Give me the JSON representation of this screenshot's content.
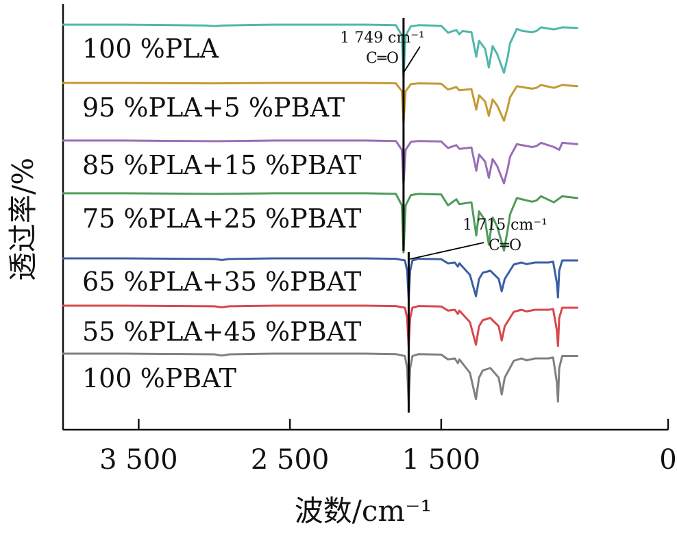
{
  "chart_data": {
    "type": "line",
    "xlabel": "波数/cm⁻¹",
    "ylabel": "透过率/%",
    "xlim": [
      4000,
      0
    ],
    "x_ticks": [
      3500,
      2500,
      1500,
      0
    ],
    "x_tick_labels": [
      "3 500",
      "2 500",
      "1 500",
      "0"
    ],
    "grid": false,
    "y_scale": "stacked/offset, no numeric tick labels",
    "series": [
      {
        "label": "100 %PLA",
        "color": "#4fb8aa",
        "points": [
          [
            4000,
            100
          ],
          [
            3600,
            100
          ],
          [
            3050,
            98.5
          ],
          [
            3000,
            97.5
          ],
          [
            2950,
            98.5
          ],
          [
            2600,
            100
          ],
          [
            2000,
            100
          ],
          [
            1800,
            99
          ],
          [
            1760,
            80
          ],
          [
            1749,
            2
          ],
          [
            1735,
            80
          ],
          [
            1700,
            97
          ],
          [
            1650,
            99
          ],
          [
            1500,
            98
          ],
          [
            1455,
            85
          ],
          [
            1400,
            90
          ],
          [
            1380,
            82
          ],
          [
            1360,
            88
          ],
          [
            1300,
            86
          ],
          [
            1268,
            40
          ],
          [
            1250,
            70
          ],
          [
            1210,
            55
          ],
          [
            1185,
            20
          ],
          [
            1160,
            60
          ],
          [
            1130,
            45
          ],
          [
            1085,
            10
          ],
          [
            1060,
            40
          ],
          [
            1045,
            65
          ],
          [
            1000,
            92
          ],
          [
            960,
            88
          ],
          [
            900,
            86
          ],
          [
            870,
            88
          ],
          [
            840,
            95
          ],
          [
            755,
            91
          ],
          [
            700,
            95
          ],
          [
            600,
            94
          ]
        ]
      },
      {
        "label": "95 %PLA+5 %PBAT",
        "color": "#c49a34",
        "points": [
          [
            4000,
            100
          ],
          [
            3600,
            100
          ],
          [
            3000,
            99
          ],
          [
            2600,
            100
          ],
          [
            2000,
            100
          ],
          [
            1800,
            99
          ],
          [
            1760,
            80
          ],
          [
            1749,
            2
          ],
          [
            1735,
            80
          ],
          [
            1700,
            97
          ],
          [
            1650,
            99
          ],
          [
            1500,
            98
          ],
          [
            1455,
            84
          ],
          [
            1400,
            90
          ],
          [
            1380,
            82
          ],
          [
            1300,
            85
          ],
          [
            1268,
            35
          ],
          [
            1250,
            70
          ],
          [
            1210,
            55
          ],
          [
            1185,
            20
          ],
          [
            1160,
            60
          ],
          [
            1130,
            45
          ],
          [
            1085,
            8
          ],
          [
            1060,
            40
          ],
          [
            1045,
            65
          ],
          [
            1000,
            92
          ],
          [
            900,
            86
          ],
          [
            870,
            88
          ],
          [
            840,
            95
          ],
          [
            755,
            88
          ],
          [
            700,
            95
          ],
          [
            600,
            92
          ]
        ]
      },
      {
        "label": "85 %PLA+15 %PBAT",
        "color": "#9a6db5",
        "points": [
          [
            4000,
            100
          ],
          [
            3600,
            100
          ],
          [
            3000,
            98.5
          ],
          [
            2600,
            100
          ],
          [
            2000,
            100
          ],
          [
            1800,
            99
          ],
          [
            1760,
            80
          ],
          [
            1749,
            5
          ],
          [
            1735,
            80
          ],
          [
            1700,
            97
          ],
          [
            1650,
            99
          ],
          [
            1500,
            98
          ],
          [
            1455,
            84
          ],
          [
            1400,
            90
          ],
          [
            1380,
            82
          ],
          [
            1300,
            85
          ],
          [
            1268,
            35
          ],
          [
            1250,
            70
          ],
          [
            1210,
            55
          ],
          [
            1185,
            20
          ],
          [
            1160,
            60
          ],
          [
            1130,
            45
          ],
          [
            1085,
            8
          ],
          [
            1060,
            40
          ],
          [
            1045,
            65
          ],
          [
            1000,
            92
          ],
          [
            900,
            86
          ],
          [
            870,
            88
          ],
          [
            840,
            95
          ],
          [
            755,
            86
          ],
          [
            720,
            80
          ],
          [
            700,
            95
          ],
          [
            600,
            92
          ]
        ]
      },
      {
        "label": "75 %PLA+25 %PBAT",
        "color": "#4f9b58",
        "points": [
          [
            4000,
            100
          ],
          [
            3600,
            100
          ],
          [
            3000,
            99
          ],
          [
            2600,
            100
          ],
          [
            2000,
            100
          ],
          [
            1800,
            99
          ],
          [
            1760,
            80
          ],
          [
            1749,
            2
          ],
          [
            1735,
            80
          ],
          [
            1700,
            97
          ],
          [
            1650,
            99
          ],
          [
            1500,
            98
          ],
          [
            1455,
            80
          ],
          [
            1400,
            90
          ],
          [
            1380,
            82
          ],
          [
            1300,
            85
          ],
          [
            1268,
            30
          ],
          [
            1250,
            70
          ],
          [
            1210,
            55
          ],
          [
            1185,
            15
          ],
          [
            1160,
            60
          ],
          [
            1130,
            45
          ],
          [
            1085,
            5
          ],
          [
            1060,
            40
          ],
          [
            1045,
            65
          ],
          [
            1000,
            92
          ],
          [
            900,
            86
          ],
          [
            870,
            88
          ],
          [
            840,
            95
          ],
          [
            755,
            85
          ],
          [
            700,
            95
          ],
          [
            600,
            92
          ]
        ]
      },
      {
        "label": "65 %PLA+35 %PBAT",
        "color": "#3c5fa3",
        "points": [
          [
            4000,
            100
          ],
          [
            3600,
            100
          ],
          [
            3000,
            98.5
          ],
          [
            2950,
            96
          ],
          [
            2900,
            98.5
          ],
          [
            2600,
            100
          ],
          [
            2000,
            100
          ],
          [
            1800,
            99
          ],
          [
            1740,
            95
          ],
          [
            1725,
            70
          ],
          [
            1715,
            2
          ],
          [
            1705,
            70
          ],
          [
            1690,
            95
          ],
          [
            1650,
            99
          ],
          [
            1500,
            98
          ],
          [
            1455,
            88
          ],
          [
            1410,
            90
          ],
          [
            1390,
            80
          ],
          [
            1380,
            88
          ],
          [
            1310,
            60
          ],
          [
            1270,
            8
          ],
          [
            1250,
            50
          ],
          [
            1225,
            65
          ],
          [
            1175,
            70
          ],
          [
            1120,
            50
          ],
          [
            1100,
            20
          ],
          [
            1080,
            50
          ],
          [
            1020,
            85
          ],
          [
            970,
            90
          ],
          [
            935,
            86
          ],
          [
            880,
            90
          ],
          [
            790,
            90
          ],
          [
            760,
            92
          ],
          [
            735,
            40
          ],
          [
            728,
            5
          ],
          [
            720,
            70
          ],
          [
            700,
            95
          ],
          [
            600,
            95
          ]
        ]
      },
      {
        "label": "55 %PLA+45 %PBAT",
        "color": "#d8474d",
        "points": [
          [
            4000,
            100
          ],
          [
            3600,
            100
          ],
          [
            3000,
            98.5
          ],
          [
            2950,
            96
          ],
          [
            2900,
            98.5
          ],
          [
            2600,
            100
          ],
          [
            2000,
            100
          ],
          [
            1800,
            99
          ],
          [
            1740,
            95
          ],
          [
            1725,
            70
          ],
          [
            1715,
            0
          ],
          [
            1705,
            70
          ],
          [
            1690,
            95
          ],
          [
            1650,
            99
          ],
          [
            1500,
            98
          ],
          [
            1455,
            88
          ],
          [
            1410,
            90
          ],
          [
            1390,
            80
          ],
          [
            1380,
            88
          ],
          [
            1310,
            60
          ],
          [
            1270,
            5
          ],
          [
            1250,
            50
          ],
          [
            1225,
            65
          ],
          [
            1175,
            70
          ],
          [
            1120,
            50
          ],
          [
            1100,
            15
          ],
          [
            1080,
            50
          ],
          [
            1020,
            85
          ],
          [
            970,
            90
          ],
          [
            935,
            86
          ],
          [
            880,
            90
          ],
          [
            790,
            90
          ],
          [
            760,
            92
          ],
          [
            735,
            40
          ],
          [
            728,
            2
          ],
          [
            720,
            70
          ],
          [
            700,
            95
          ],
          [
            600,
            95
          ]
        ]
      },
      {
        "label": "100 %PBAT",
        "color": "#808080",
        "points": [
          [
            4000,
            100
          ],
          [
            3600,
            100
          ],
          [
            3000,
            98.5
          ],
          [
            2950,
            96
          ],
          [
            2900,
            98.5
          ],
          [
            2600,
            100
          ],
          [
            2000,
            100
          ],
          [
            1800,
            99
          ],
          [
            1740,
            95
          ],
          [
            1725,
            70
          ],
          [
            1715,
            0
          ],
          [
            1705,
            70
          ],
          [
            1690,
            95
          ],
          [
            1650,
            99
          ],
          [
            1500,
            98
          ],
          [
            1455,
            88
          ],
          [
            1410,
            90
          ],
          [
            1390,
            80
          ],
          [
            1380,
            88
          ],
          [
            1310,
            60
          ],
          [
            1270,
            5
          ],
          [
            1250,
            50
          ],
          [
            1225,
            65
          ],
          [
            1175,
            70
          ],
          [
            1120,
            50
          ],
          [
            1100,
            15
          ],
          [
            1080,
            50
          ],
          [
            1020,
            85
          ],
          [
            970,
            90
          ],
          [
            935,
            86
          ],
          [
            880,
            90
          ],
          [
            790,
            90
          ],
          [
            760,
            92
          ],
          [
            735,
            40
          ],
          [
            728,
            0
          ],
          [
            720,
            70
          ],
          [
            700,
            95
          ],
          [
            600,
            95
          ]
        ]
      }
    ],
    "annotations": [
      {
        "line1": "1 749 cm⁻¹",
        "line2": "C═O",
        "x": 1749
      },
      {
        "line1": "1 715 cm⁻¹",
        "line2": "C═O",
        "x": 1715
      }
    ]
  }
}
